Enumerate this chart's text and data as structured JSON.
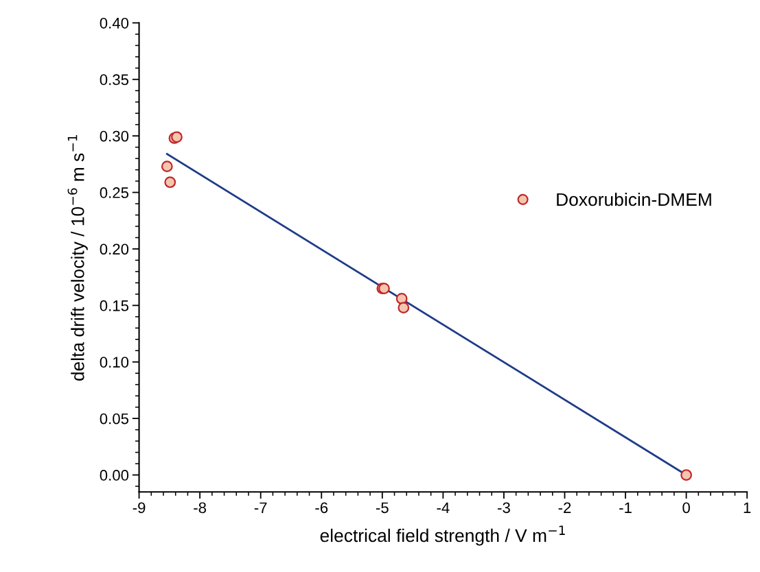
{
  "chart_data": {
    "type": "scatter",
    "xlabel": "electrical field strength / V m$^{−1}$",
    "ylabel": "delta drift velocity / 10$^{−6}$ m s$^{−1}$",
    "xlim": [
      -9,
      1
    ],
    "xticks": [
      -9,
      -8,
      -7,
      -6,
      -5,
      -4,
      -3,
      -2,
      -1,
      0,
      1
    ],
    "ylim": [
      -0.015,
      0.4
    ],
    "yticks": [
      {
        "value": 0,
        "label": "0.00"
      },
      0.05,
      {
        "value": 0.1,
        "label": "0.10"
      },
      0.15,
      {
        "value": 0.2,
        "label": "0.20"
      },
      0.25,
      {
        "value": 0.3,
        "label": "0.30"
      },
      0.35,
      {
        "value": 0.4,
        "label": "0.40"
      }
    ],
    "grid": false,
    "legend": "right",
    "series": [
      {
        "name": "Doxorubicin-DMEM",
        "marker": "circle",
        "color": "#c0282b",
        "x": [
          -8.54,
          -8.49,
          -8.42,
          -8.38,
          -5.0,
          -4.97,
          -4.68,
          -4.65,
          0
        ],
        "values": [
          0.273,
          0.259,
          0.298,
          0.299,
          0.165,
          0.165,
          0.156,
          0.148,
          0
        ]
      },
      {
        "type": "line",
        "marker": "none",
        "color": "#1f3c88",
        "x": [
          -8.54,
          0
        ],
        "values": [
          0.284,
          0
        ]
      }
    ]
  }
}
